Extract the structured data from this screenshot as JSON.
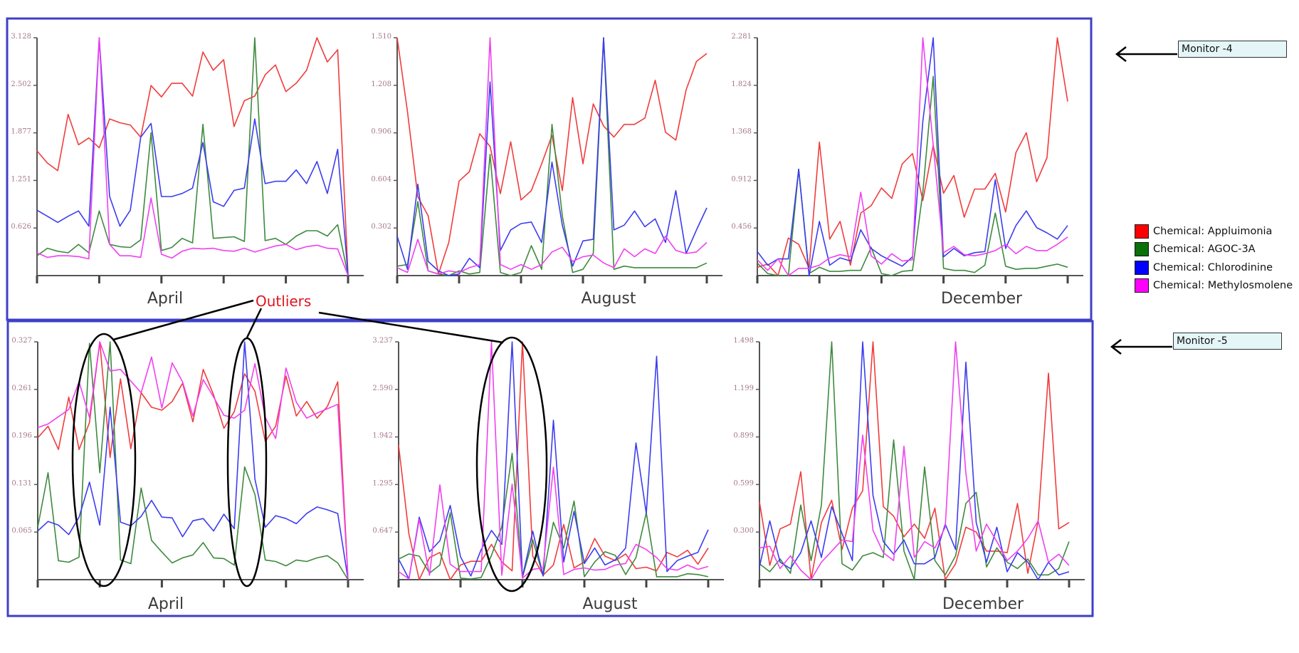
{
  "annotation": {
    "outliers_label": "Outliers"
  },
  "monitors": [
    {
      "label": "Monitor -4"
    },
    {
      "label": "Monitor -5"
    }
  ],
  "legend": [
    {
      "label": "Chemical: Appluimonia",
      "color": "#ff0000"
    },
    {
      "label": "Chemical: AGOC-3A",
      "color": "#0a700a"
    },
    {
      "label": "Chemical: Chlorodinine",
      "color": "#0000ff"
    },
    {
      "label": "Chemical: Methylosmolene",
      "color": "#ff00ff"
    }
  ],
  "chart_data": [
    {
      "type": "line",
      "monitor": "Monitor -4",
      "xlabel": "April",
      "ylim": [
        0,
        3.128
      ],
      "yticks": [
        "0.626",
        "1.251",
        "1.877",
        "2.502",
        "3.128"
      ],
      "series": [
        {
          "name": "Chemical: Appluimonia",
          "color": "#f03c3c",
          "values": [
            1.64,
            1.48,
            1.38,
            2.12,
            1.72,
            1.81,
            1.68,
            2.06,
            2.01,
            1.98,
            1.82,
            2.5,
            2.35,
            2.53,
            2.53,
            2.36,
            2.94,
            2.7,
            2.84,
            1.96,
            2.3,
            2.36,
            2.64,
            2.77,
            2.42,
            2.53,
            2.7,
            3.13,
            2.81,
            2.97,
            0
          ]
        },
        {
          "name": "Chemical: AGOC-3A",
          "color": "#3d8a3d",
          "values": [
            0.26,
            0.36,
            0.32,
            0.3,
            0.41,
            0.3,
            0.85,
            0.41,
            0.38,
            0.37,
            0.47,
            1.88,
            0.33,
            0.37,
            0.49,
            0.43,
            1.99,
            0.49,
            0.5,
            0.51,
            0.45,
            3.13,
            0.46,
            0.49,
            0.41,
            0.52,
            0.59,
            0.59,
            0.52,
            0.67,
            0
          ]
        },
        {
          "name": "Chemical: Chlorodinine",
          "color": "#3c3cf0",
          "values": [
            0.86,
            0.78,
            0.7,
            0.78,
            0.85,
            0.65,
            3.13,
            1.04,
            0.65,
            0.86,
            1.82,
            2.0,
            1.04,
            1.04,
            1.08,
            1.15,
            1.75,
            0.97,
            0.91,
            1.12,
            1.15,
            2.06,
            1.21,
            1.24,
            1.24,
            1.39,
            1.21,
            1.5,
            1.08,
            1.66,
            0
          ]
        },
        {
          "name": "Chemical: Methylosmolene",
          "color": "#f040f0",
          "values": [
            0.3,
            0.24,
            0.26,
            0.26,
            0.25,
            0.22,
            3.13,
            0.41,
            0.26,
            0.26,
            0.24,
            1.02,
            0.28,
            0.23,
            0.32,
            0.36,
            0.35,
            0.36,
            0.33,
            0.32,
            0.36,
            0.31,
            0.35,
            0.39,
            0.41,
            0.34,
            0.38,
            0.4,
            0.36,
            0.35,
            0
          ]
        }
      ]
    },
    {
      "type": "line",
      "monitor": "Monitor -4",
      "xlabel": "August",
      "ylim": [
        0,
        1.51
      ],
      "yticks": [
        "0.302",
        "0.604",
        "0.906",
        "1.208",
        "1.510"
      ],
      "series": [
        {
          "name": "Chemical: Appluimonia",
          "color": "#f03c3c",
          "values": [
            1.51,
            1.04,
            0.5,
            0.38,
            0.01,
            0.21,
            0.6,
            0.66,
            0.9,
            0.82,
            0.52,
            0.85,
            0.48,
            0.54,
            0.71,
            0.89,
            0.54,
            1.13,
            0.71,
            1.09,
            0.95,
            0.88,
            0.96,
            0.96,
            1.0,
            1.24,
            0.91,
            0.86,
            1.18,
            1.36,
            1.41
          ]
        },
        {
          "name": "Chemical: AGOC-3A",
          "color": "#3d8a3d",
          "values": [
            0.06,
            0.07,
            0.47,
            0.03,
            0.01,
            0,
            0.03,
            0.01,
            0.02,
            0.77,
            0.02,
            0,
            0.02,
            0.19,
            0.04,
            0.96,
            0.38,
            0.02,
            0.04,
            0.14,
            1.51,
            0.04,
            0.06,
            0.05,
            0.05,
            0.05,
            0.05,
            0.05,
            0.05,
            0.05,
            0.08
          ]
        },
        {
          "name": "Chemical: Chlorodinine",
          "color": "#3c3cf0",
          "values": [
            0.25,
            0.04,
            0.58,
            0.09,
            0.03,
            0,
            0.01,
            0.11,
            0.05,
            1.23,
            0.16,
            0.29,
            0.33,
            0.34,
            0.21,
            0.72,
            0.32,
            0.06,
            0.22,
            0.23,
            1.51,
            0.29,
            0.32,
            0.41,
            0.31,
            0.36,
            0.21,
            0.54,
            0.14,
            0.29,
            0.43
          ]
        },
        {
          "name": "Chemical: Methylosmolene",
          "color": "#f040f0",
          "values": [
            0.05,
            0.02,
            0.23,
            0.03,
            0.01,
            0.03,
            0.02,
            0.05,
            0.07,
            1.51,
            0.07,
            0.04,
            0.07,
            0.04,
            0.07,
            0.15,
            0.18,
            0.09,
            0.12,
            0.13,
            0.08,
            0.05,
            0.17,
            0.12,
            0.17,
            0.14,
            0.25,
            0.16,
            0.14,
            0.15,
            0.21
          ]
        }
      ]
    },
    {
      "type": "line",
      "monitor": "Monitor -4",
      "xlabel": "December",
      "ylim": [
        0,
        2.281
      ],
      "yticks": [
        "0.456",
        "0.912",
        "1.368",
        "1.824",
        "2.281"
      ],
      "series": [
        {
          "name": "Chemical: Appluimonia",
          "color": "#f03c3c",
          "values": [
            0.08,
            0.11,
            0,
            0.36,
            0.3,
            0.07,
            1.28,
            0.35,
            0.52,
            0.1,
            0.6,
            0.67,
            0.84,
            0.74,
            1.07,
            1.17,
            0.72,
            1.25,
            0.79,
            0.96,
            0.56,
            0.83,
            0.83,
            0.98,
            0.61,
            1.18,
            1.37,
            0.9,
            1.13,
            2.28,
            1.67
          ]
        },
        {
          "name": "Chemical: AGOC-3A",
          "color": "#3d8a3d",
          "values": [
            0.12,
            0.02,
            0,
            0,
            1.02,
            0.02,
            0.08,
            0.04,
            0.04,
            0.05,
            0.05,
            0.27,
            0.02,
            0,
            0.04,
            0.05,
            0.8,
            1.91,
            0.07,
            0.05,
            0.05,
            0.03,
            0.1,
            0.6,
            0.09,
            0.06,
            0.07,
            0.07,
            0.09,
            0.11,
            0.08
          ]
        },
        {
          "name": "Chemical: Chlorodinine",
          "color": "#3c3cf0",
          "values": [
            0.23,
            0.1,
            0.16,
            0.16,
            1.02,
            0,
            0.52,
            0.1,
            0.17,
            0.14,
            0.44,
            0.26,
            0.19,
            0.14,
            0.09,
            0.18,
            1.48,
            2.28,
            0.18,
            0.26,
            0.19,
            0.22,
            0.23,
            0.92,
            0.26,
            0.48,
            0.62,
            0.46,
            0.41,
            0.35,
            0.48
          ]
        },
        {
          "name": "Chemical: Methylosmolene",
          "color": "#f040f0",
          "values": [
            0.15,
            0.05,
            0.16,
            0,
            0.07,
            0.07,
            0.1,
            0.17,
            0.2,
            0.18,
            0.8,
            0.19,
            0.11,
            0.21,
            0.14,
            0.15,
            2.28,
            1.25,
            0.22,
            0.28,
            0.2,
            0.19,
            0.21,
            0.24,
            0.3,
            0.21,
            0.28,
            0.24,
            0.24,
            0.3,
            0.37
          ]
        }
      ]
    },
    {
      "type": "line",
      "monitor": "Monitor -5",
      "xlabel": "April",
      "ylim": [
        0,
        0.327
      ],
      "yticks": [
        "0.065",
        "0.131",
        "0.196",
        "0.261",
        "0.327"
      ],
      "series": [
        {
          "name": "Chemical: Appluimonia",
          "color": "#f03c3c",
          "values": [
            0.195,
            0.211,
            0.179,
            0.251,
            0.179,
            0.216,
            0.327,
            0.168,
            0.276,
            0.18,
            0.257,
            0.237,
            0.233,
            0.245,
            0.27,
            0.217,
            0.289,
            0.254,
            0.208,
            0.231,
            0.283,
            0.259,
            0.19,
            0.211,
            0.28,
            0.225,
            0.245,
            0.222,
            0.238,
            0.272,
            0
          ]
        },
        {
          "name": "Chemical: AGOC-3A",
          "color": "#3d8a3d",
          "values": [
            0.072,
            0.147,
            0.026,
            0.024,
            0.031,
            0.325,
            0.147,
            0.327,
            0.027,
            0.022,
            0.126,
            0.054,
            0.038,
            0.023,
            0.03,
            0.034,
            0.051,
            0.03,
            0.029,
            0.02,
            0.155,
            0.117,
            0.027,
            0.025,
            0.019,
            0.027,
            0.025,
            0.03,
            0.033,
            0.023,
            0
          ]
        },
        {
          "name": "Chemical: Chlorodinine",
          "color": "#3c3cf0",
          "values": [
            0.067,
            0.08,
            0.075,
            0.062,
            0.086,
            0.134,
            0.075,
            0.237,
            0.079,
            0.074,
            0.087,
            0.109,
            0.086,
            0.085,
            0.059,
            0.081,
            0.084,
            0.067,
            0.09,
            0.07,
            0.327,
            0.138,
            0.072,
            0.088,
            0.084,
            0.077,
            0.091,
            0.1,
            0.096,
            0.091,
            0
          ]
        },
        {
          "name": "Chemical: Methylosmolene",
          "color": "#f040f0",
          "values": [
            0.209,
            0.214,
            0.224,
            0.234,
            0.272,
            0.223,
            0.327,
            0.287,
            0.289,
            0.273,
            0.257,
            0.306,
            0.236,
            0.298,
            0.272,
            0.225,
            0.275,
            0.251,
            0.226,
            0.222,
            0.233,
            0.297,
            0.223,
            0.194,
            0.291,
            0.244,
            0.222,
            0.229,
            0.235,
            0.241,
            0
          ]
        }
      ]
    },
    {
      "type": "line",
      "monitor": "Monitor -5",
      "xlabel": "August",
      "ylim": [
        0,
        3.237
      ],
      "yticks": [
        "0.647",
        "1.295",
        "1.942",
        "2.590",
        "3.237"
      ],
      "series": [
        {
          "name": "Chemical: Appluimonia",
          "color": "#f03c3c",
          "values": [
            1.83,
            0.62,
            0,
            0.3,
            0.37,
            0,
            0.2,
            0.25,
            0.25,
            0.48,
            0.24,
            0.12,
            3.24,
            0.32,
            0.06,
            0.2,
            0.75,
            0.16,
            0.24,
            0.56,
            0.32,
            0.26,
            0.35,
            0.15,
            0.17,
            0.12,
            0.37,
            0.31,
            0.4,
            0.21,
            0.43
          ]
        },
        {
          "name": "Chemical: AGOC-3A",
          "color": "#3d8a3d",
          "values": [
            0.28,
            0.35,
            0.32,
            0.09,
            0.2,
            0.91,
            0.02,
            0.01,
            0.03,
            0.33,
            0.72,
            1.72,
            0.03,
            0.54,
            0.05,
            0.78,
            0.43,
            1.07,
            0.04,
            0.24,
            0.38,
            0.33,
            0.07,
            0.3,
            0.91,
            0.04,
            0.04,
            0.04,
            0.08,
            0.07,
            0.04
          ]
        },
        {
          "name": "Chemical: Chlorodinine",
          "color": "#3c3cf0",
          "values": [
            0.28,
            0.01,
            0.85,
            0.38,
            0.53,
            1.01,
            0.31,
            0.05,
            0.41,
            0.67,
            0.48,
            3.24,
            0.04,
            0.66,
            0.05,
            2.17,
            0.24,
            0.93,
            0.22,
            0.43,
            0.2,
            0.27,
            0.43,
            1.86,
            0.9,
            3.04,
            0.11,
            0.26,
            0.32,
            0.37,
            0.68
          ]
        },
        {
          "name": "Chemical: Methylosmolene",
          "color": "#f040f0",
          "values": [
            0.11,
            0.01,
            0.82,
            0.06,
            1.29,
            0.21,
            0.11,
            0.11,
            0.11,
            3.24,
            0.06,
            1.3,
            0.02,
            0.14,
            0.16,
            1.53,
            0.07,
            0.14,
            0.16,
            0.13,
            0.14,
            0.2,
            0.22,
            0.48,
            0.41,
            0.3,
            0.15,
            0.13,
            0.2,
            0.14,
            0.18
          ]
        }
      ]
    },
    {
      "type": "line",
      "monitor": "Monitor -5",
      "xlabel": "December",
      "ylim": [
        0,
        1.498
      ],
      "yticks": [
        "0.300",
        "0.599",
        "0.899",
        "1.199",
        "1.498"
      ],
      "series": [
        {
          "name": "Chemical: Appluimonia",
          "color": "#f03c3c",
          "values": [
            0.49,
            0.09,
            0.32,
            0.35,
            0.68,
            0,
            0.36,
            0.5,
            0.19,
            0.45,
            0.56,
            1.5,
            0.46,
            0.4,
            0.27,
            0.35,
            0.26,
            0.45,
            0,
            0.1,
            0.33,
            0.3,
            0.18,
            0.18,
            0.17,
            0.48,
            0.04,
            0.37,
            1.3,
            0.32,
            0.36
          ]
        },
        {
          "name": "Chemical: AGOC-3A",
          "color": "#3d8a3d",
          "values": [
            0.1,
            0.05,
            0.13,
            0.04,
            0.47,
            0.12,
            0.47,
            1.5,
            0.1,
            0.06,
            0.15,
            0.17,
            0.14,
            0.88,
            0.18,
            0,
            0.71,
            0.12,
            0.03,
            0.15,
            0.48,
            0.55,
            0.08,
            0.2,
            0.11,
            0.07,
            0.13,
            0.03,
            0.03,
            0.07,
            0.24
          ]
        },
        {
          "name": "Chemical: Chlorodinine",
          "color": "#3c3cf0",
          "values": [
            0.08,
            0.37,
            0.11,
            0.07,
            0.17,
            0.37,
            0.14,
            0.46,
            0.29,
            0.12,
            1.5,
            0.53,
            0.24,
            0.16,
            0.25,
            0.1,
            0.1,
            0.14,
            0.35,
            0.19,
            1.37,
            0.36,
            0.11,
            0.33,
            0.05,
            0.17,
            0.11,
            0,
            0.11,
            0.03,
            0.05
          ]
        },
        {
          "name": "Chemical: Methylosmolene",
          "color": "#f040f0",
          "values": [
            0.2,
            0.21,
            0.07,
            0.15,
            0.06,
            0,
            0.11,
            0.18,
            0.25,
            0.24,
            0.91,
            0.31,
            0.17,
            0.12,
            0.84,
            0.14,
            0.24,
            0.2,
            0.33,
            1.5,
            0.67,
            0.18,
            0.35,
            0.24,
            0.12,
            0.18,
            0.26,
            0.37,
            0.11,
            0.16,
            0.09
          ]
        }
      ]
    }
  ]
}
